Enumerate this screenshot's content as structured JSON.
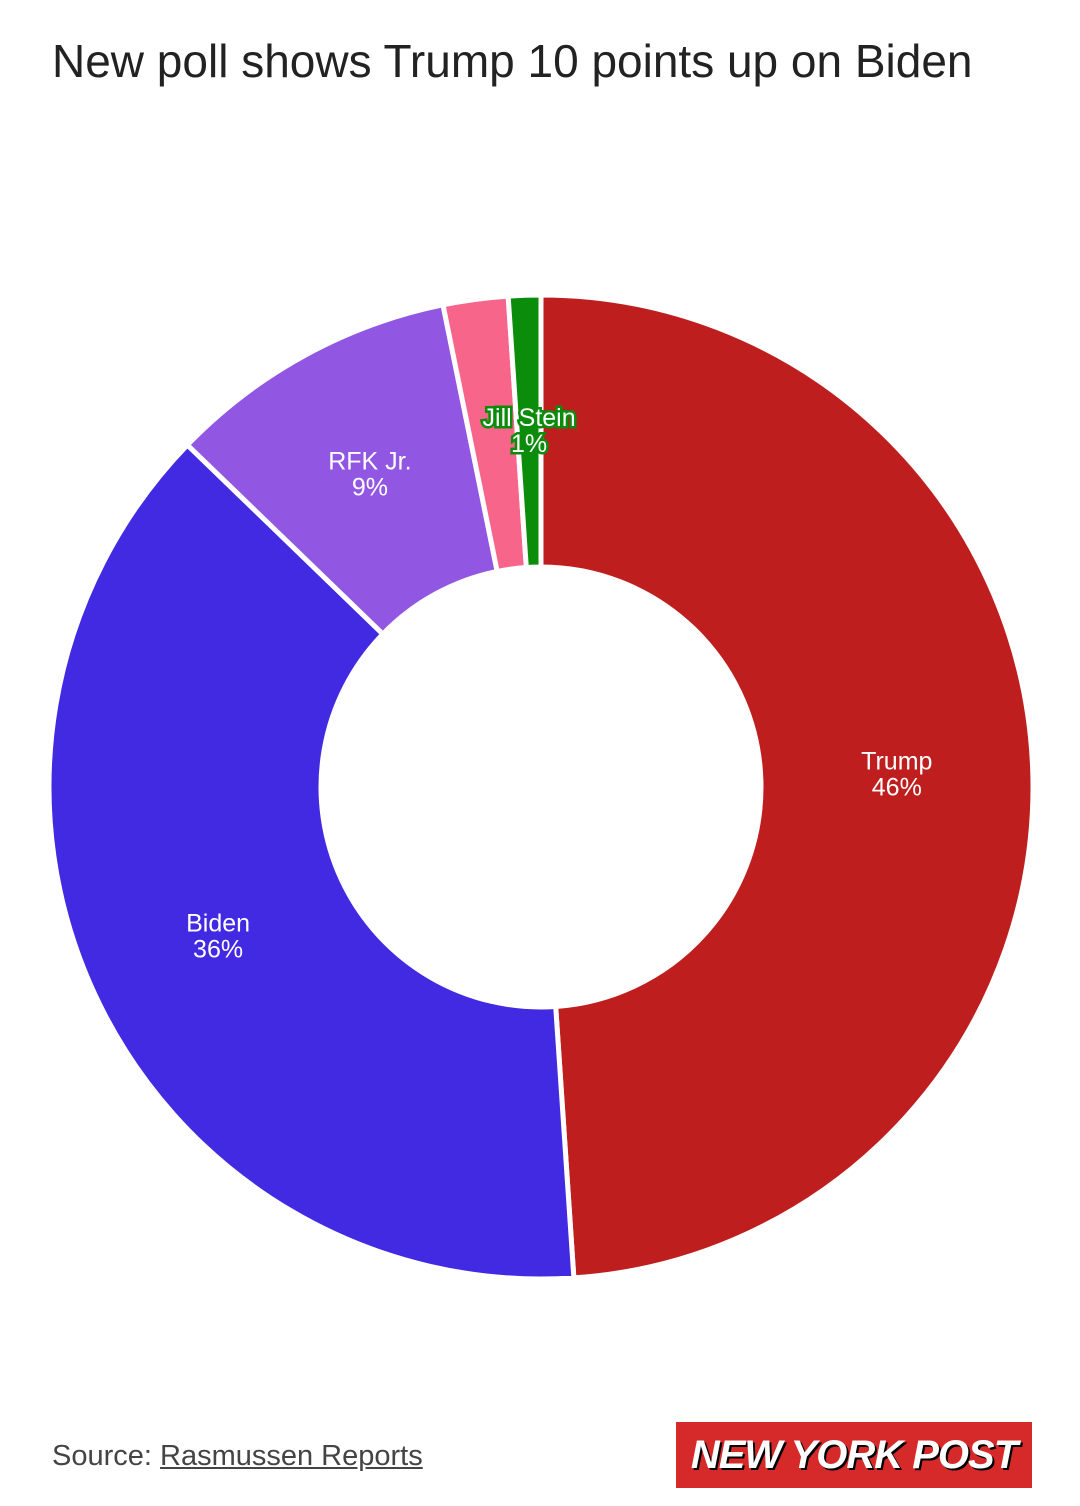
{
  "chart_data": {
    "type": "donut",
    "title": "New poll shows Trump 10 points up on Biden",
    "categories": [
      "Trump",
      "Biden",
      "RFK Jr.",
      null,
      "Jill Stein"
    ],
    "values": [
      46,
      36,
      9,
      2,
      1
    ],
    "value_labels": [
      "46%",
      "36%",
      "9%",
      null,
      "1%"
    ],
    "colors": [
      "#be1e1e",
      "#4229e2",
      "#9157e2",
      "#f7668a",
      "#0b8c0b"
    ],
    "source_label": "Source:",
    "source": "Rasmussen Reports"
  },
  "logo": "NEW YORK POST"
}
